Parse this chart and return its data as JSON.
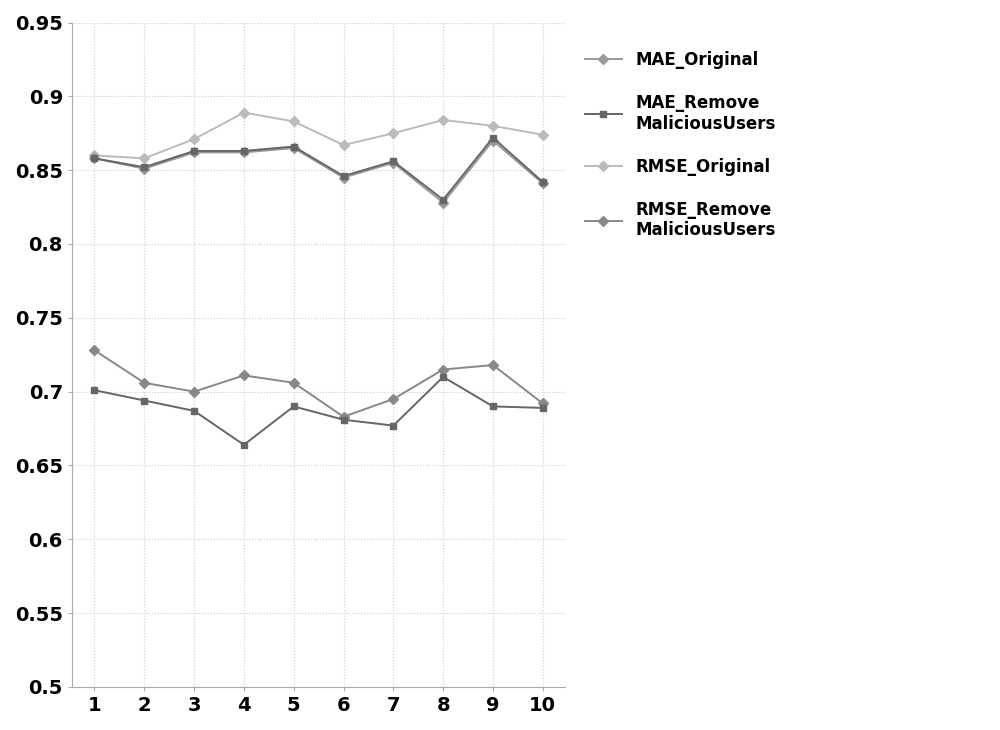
{
  "x": [
    1,
    2,
    3,
    4,
    5,
    6,
    7,
    8,
    9,
    10
  ],
  "mae_original": [
    0.858,
    0.851,
    0.862,
    0.862,
    0.865,
    0.845,
    0.855,
    0.828,
    0.87,
    0.841
  ],
  "mae_remove": [
    0.858,
    0.852,
    0.863,
    0.863,
    0.866,
    0.846,
    0.856,
    0.83,
    0.872,
    0.842
  ],
  "rmse_original": [
    0.86,
    0.858,
    0.871,
    0.889,
    0.883,
    0.867,
    0.875,
    0.884,
    0.88,
    0.874
  ],
  "rmse_remove": [
    0.728,
    0.706,
    0.7,
    0.711,
    0.706,
    0.683,
    0.695,
    0.715,
    0.718,
    0.692
  ],
  "rmse_remove2": [
    0.701,
    0.694,
    0.687,
    0.664,
    0.69,
    0.681,
    0.677,
    0.71,
    0.69,
    0.689
  ],
  "ylim": [
    0.5,
    0.95
  ],
  "yticks": [
    0.5,
    0.55,
    0.6,
    0.65,
    0.7,
    0.75,
    0.8,
    0.85,
    0.9,
    0.95
  ],
  "ytick_labels": [
    "0.5",
    "0.55",
    "0.6",
    "0.65",
    "0.7",
    "0.75",
    "0.8",
    "0.85",
    "0.9",
    "0.95"
  ],
  "color_mae_orig": "#999999",
  "color_mae_rem": "#666666",
  "color_rmse_orig": "#bbbbbb",
  "color_rmse_rem": "#888888",
  "color_rmse_rem2": "#666666",
  "color_grid": "#cccccc",
  "legend_labels": [
    "MAE_Original",
    "MAE_Remove\nMaliciousUsers",
    "RMSE_Original",
    "RMSE_Remove\nMaliciousUsers"
  ],
  "background_color": "#ffffff",
  "fig_width": 10.0,
  "fig_height": 7.3
}
